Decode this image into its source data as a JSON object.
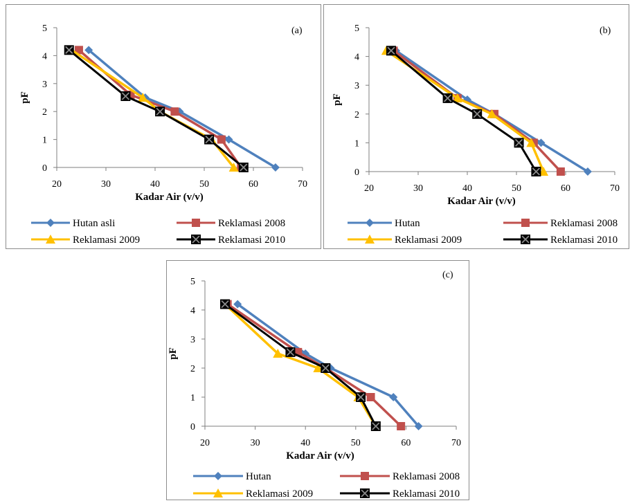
{
  "figure": {
    "panels": [
      {
        "label": "(a)",
        "xlabel": "Kadar Air (v/v)",
        "ylabel": "pF",
        "xticks": [
          "20",
          "30",
          "40",
          "50",
          "60",
          "70"
        ],
        "yticks": [
          "0",
          "1",
          "2",
          "3",
          "4",
          "5"
        ],
        "legend": [
          "Hutan asli",
          "Reklamasi 2008",
          "Reklamasi 2009",
          "Reklamasi 2010"
        ]
      },
      {
        "label": "(b)",
        "xlabel": "Kadar Air (v/v)",
        "ylabel": "pF",
        "xticks": [
          "20",
          "30",
          "40",
          "50",
          "60",
          "70"
        ],
        "yticks": [
          "0",
          "1",
          "2",
          "3",
          "4",
          "5"
        ],
        "legend": [
          "Hutan",
          "Reklamasi 2008",
          "Reklamasi 2009",
          "Reklamasi 2010"
        ]
      },
      {
        "label": "(c)",
        "xlabel": "Kadar Air (v/v)",
        "ylabel": "pF",
        "xticks": [
          "20",
          "30",
          "40",
          "50",
          "60",
          "70"
        ],
        "yticks": [
          "0",
          "1",
          "2",
          "3",
          "4",
          "5"
        ],
        "legend": [
          "Hutan",
          "Reklamasi 2008",
          "Reklamasi 2009",
          "Reklamasi 2010"
        ]
      }
    ]
  },
  "chart_data": [
    {
      "type": "line",
      "panel": "(a)",
      "xlabel": "Kadar Air (v/v)",
      "ylabel": "pF",
      "xlim": [
        20,
        70
      ],
      "ylim": [
        0,
        5
      ],
      "grid": false,
      "legend_position": "bottom",
      "series": [
        {
          "name": "Hutan asli",
          "color": "#4F81BD",
          "marker": "diamond",
          "points": [
            [
              26.5,
              4.2
            ],
            [
              38,
              2.5
            ],
            [
              45,
              2
            ],
            [
              55,
              1
            ],
            [
              64.5,
              0
            ]
          ]
        },
        {
          "name": "Reklamasi 2008",
          "color": "#C0504D",
          "marker": "square",
          "points": [
            [
              24.5,
              4.2
            ],
            [
              35,
              2.6
            ],
            [
              44,
              2
            ],
            [
              53.5,
              1
            ],
            [
              57.5,
              0
            ]
          ]
        },
        {
          "name": "Reklamasi 2009",
          "color": "#FFC000",
          "marker": "triangle",
          "points": [
            [
              23,
              4.2
            ],
            [
              37.5,
              2.5
            ],
            [
              41,
              2
            ],
            [
              51.5,
              1
            ],
            [
              56,
              0
            ]
          ]
        },
        {
          "name": "Reklamasi 2010",
          "color": "#000000",
          "marker": "square-x",
          "points": [
            [
              22.5,
              4.2
            ],
            [
              34,
              2.55
            ],
            [
              41,
              2
            ],
            [
              51,
              1
            ],
            [
              58,
              0
            ]
          ]
        }
      ]
    },
    {
      "type": "line",
      "panel": "(b)",
      "xlabel": "Kadar Air (v/v)",
      "ylabel": "pF",
      "xlim": [
        20,
        70
      ],
      "ylim": [
        0,
        5
      ],
      "grid": false,
      "legend_position": "bottom",
      "series": [
        {
          "name": "Hutan",
          "color": "#4F81BD",
          "marker": "diamond",
          "points": [
            [
              25.5,
              4.2
            ],
            [
              40,
              2.5
            ],
            [
              45.5,
              2
            ],
            [
              55,
              1
            ],
            [
              64.5,
              0
            ]
          ]
        },
        {
          "name": "Reklamasi 2008",
          "color": "#C0504D",
          "marker": "square",
          "points": [
            [
              25,
              4.2
            ],
            [
              38,
              2.55
            ],
            [
              45.5,
              2
            ],
            [
              53.5,
              1
            ],
            [
              59,
              0
            ]
          ]
        },
        {
          "name": "Reklamasi 2009",
          "color": "#FFC000",
          "marker": "triangle",
          "points": [
            [
              23.5,
              4.2
            ],
            [
              38,
              2.55
            ],
            [
              45,
              2
            ],
            [
              53,
              1
            ],
            [
              55.5,
              0
            ]
          ]
        },
        {
          "name": "Reklamasi 2010",
          "color": "#000000",
          "marker": "square-x",
          "points": [
            [
              24.5,
              4.2
            ],
            [
              36,
              2.55
            ],
            [
              42,
              2
            ],
            [
              50.5,
              1
            ],
            [
              54,
              0
            ]
          ]
        }
      ]
    },
    {
      "type": "line",
      "panel": "(c)",
      "xlabel": "Kadar Air (v/v)",
      "ylabel": "pF",
      "xlim": [
        20,
        70
      ],
      "ylim": [
        0,
        5
      ],
      "grid": false,
      "legend_position": "bottom",
      "series": [
        {
          "name": "Hutan",
          "color": "#4F81BD",
          "marker": "diamond",
          "points": [
            [
              26.5,
              4.2
            ],
            [
              40,
              2.5
            ],
            [
              45,
              2
            ],
            [
              57.5,
              1
            ],
            [
              62.5,
              0
            ]
          ]
        },
        {
          "name": "Reklamasi 2008",
          "color": "#C0504D",
          "marker": "square",
          "points": [
            [
              24.5,
              4.2
            ],
            [
              38.5,
              2.55
            ],
            [
              44,
              2
            ],
            [
              53,
              1
            ],
            [
              59,
              0
            ]
          ]
        },
        {
          "name": "Reklamasi 2009",
          "color": "#FFC000",
          "marker": "triangle",
          "points": [
            [
              24,
              4.2
            ],
            [
              34.5,
              2.5
            ],
            [
              42.5,
              2
            ],
            [
              50.5,
              1
            ],
            [
              54,
              0
            ]
          ]
        },
        {
          "name": "Reklamasi 2010",
          "color": "#000000",
          "marker": "square-x",
          "points": [
            [
              24,
              4.2
            ],
            [
              37,
              2.55
            ],
            [
              44,
              2
            ],
            [
              51,
              1
            ],
            [
              54,
              0
            ]
          ]
        }
      ]
    }
  ]
}
